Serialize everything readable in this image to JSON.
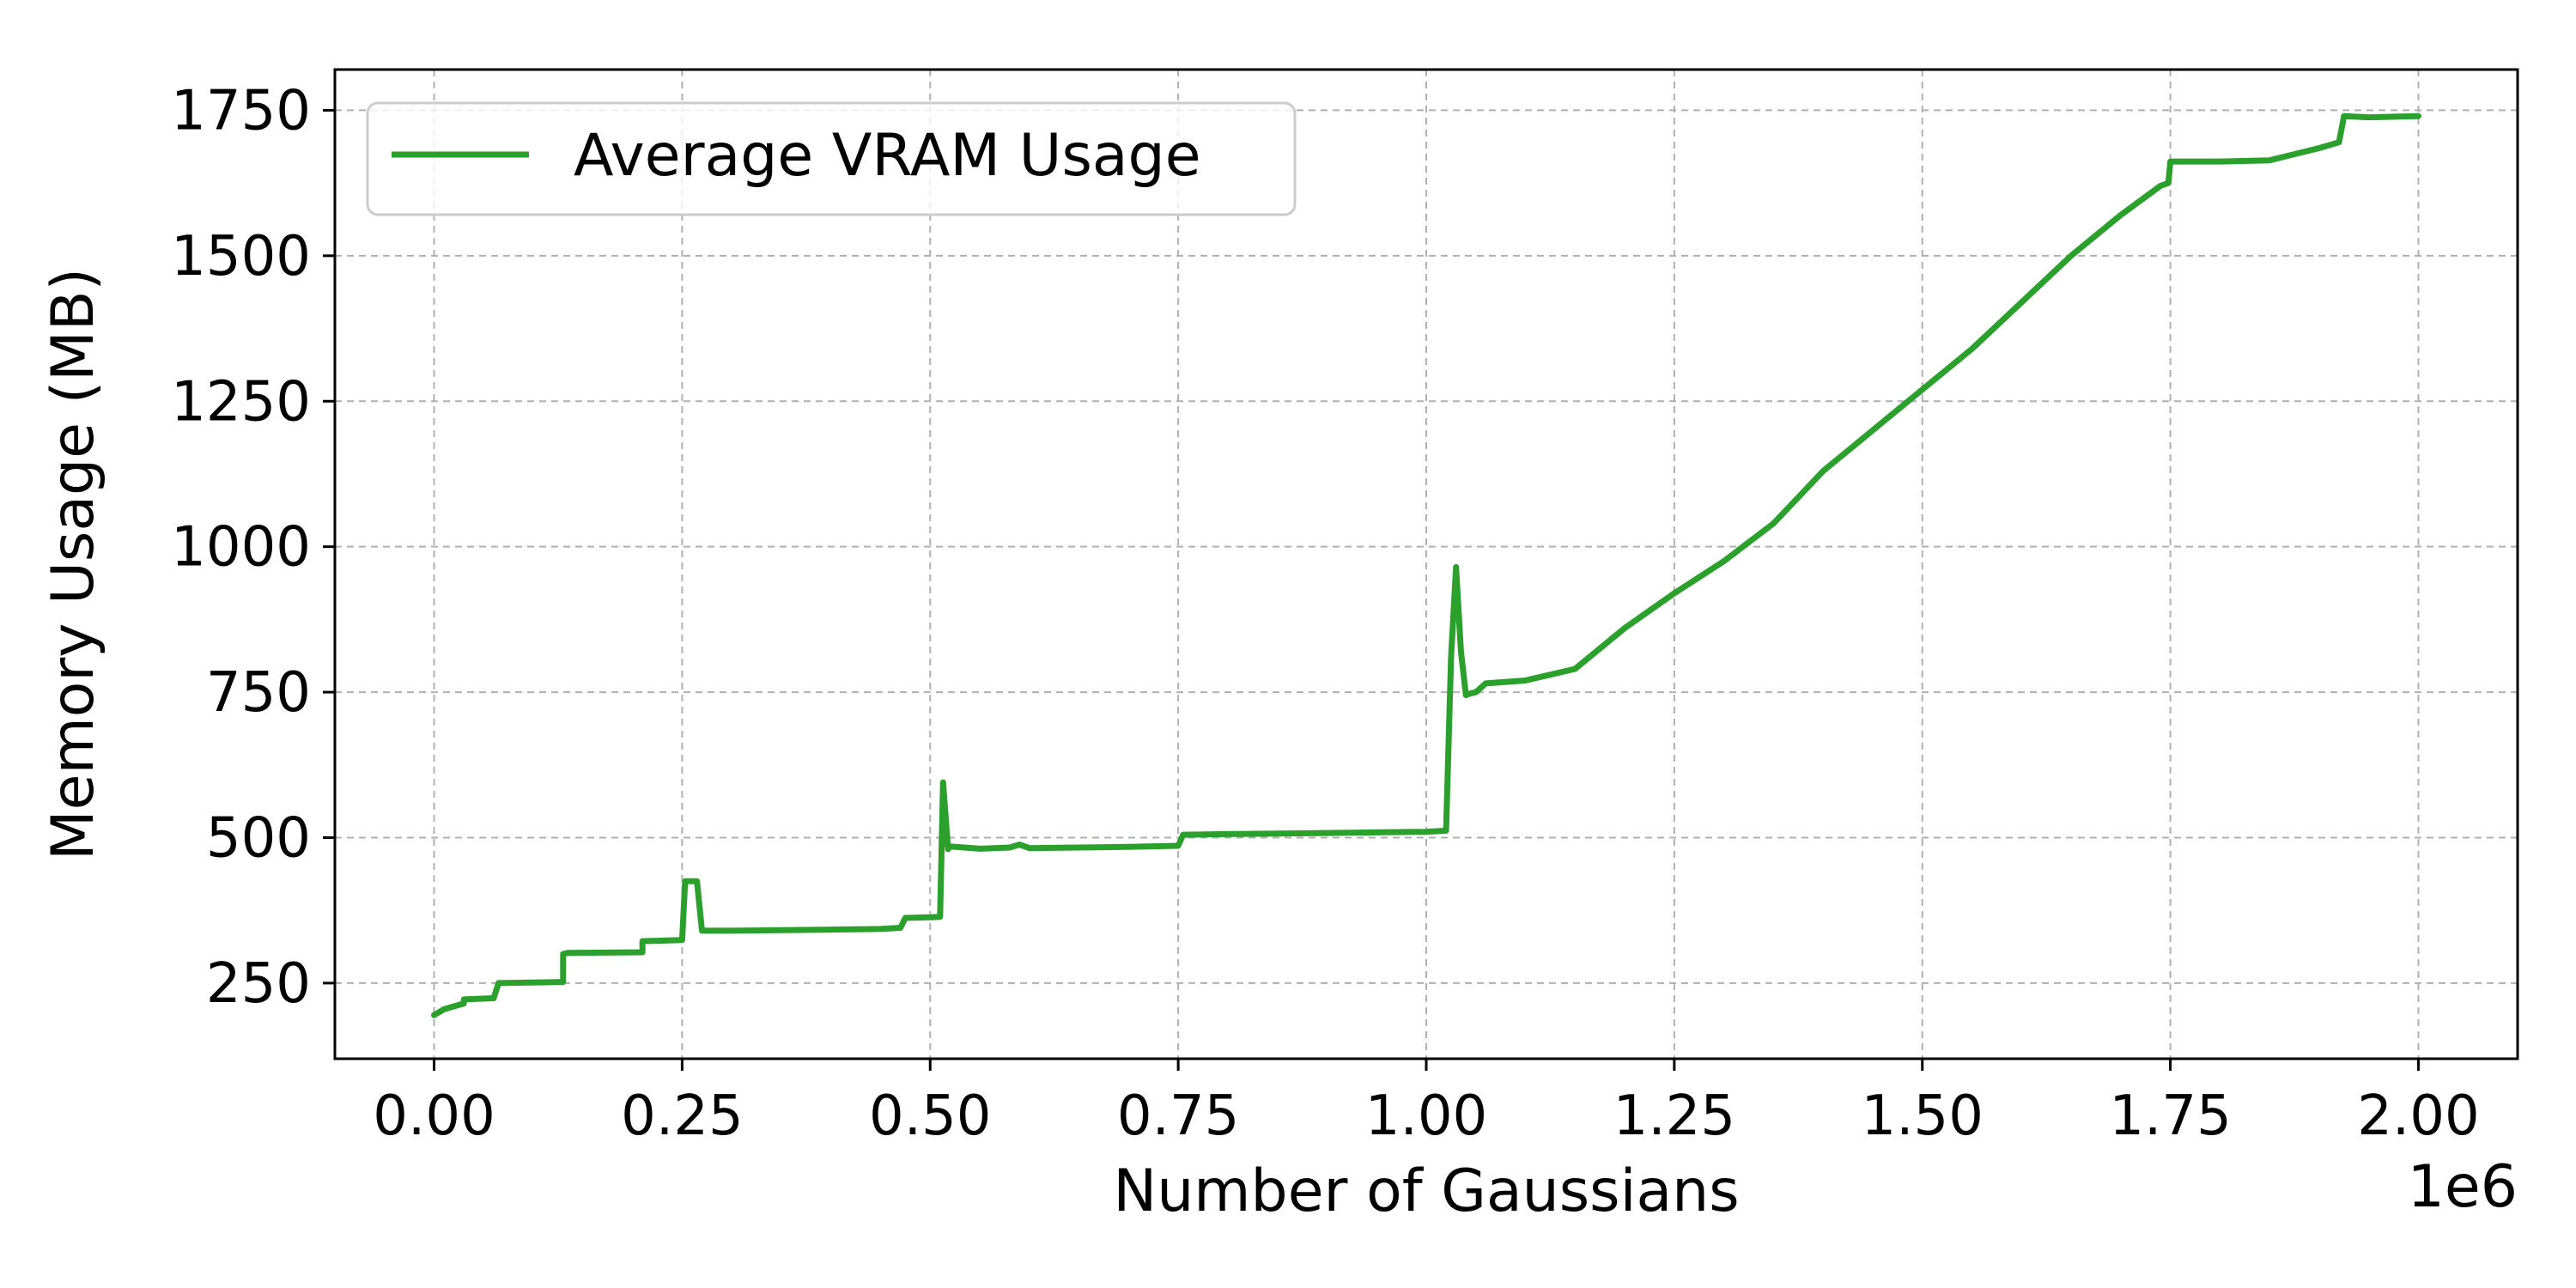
{
  "chart_data": {
    "type": "line",
    "xlabel": "Number of Gaussians",
    "ylabel": "Memory Usage (MB)",
    "x_offset_label": "1e6",
    "xlim": [
      -0.1,
      2.1
    ],
    "ylim": [
      120,
      1820
    ],
    "xticks": [
      0.0,
      0.25,
      0.5,
      0.75,
      1.0,
      1.25,
      1.5,
      1.75,
      2.0
    ],
    "xtick_labels": [
      "0.00",
      "0.25",
      "0.50",
      "0.75",
      "1.00",
      "1.25",
      "1.50",
      "1.75",
      "2.00"
    ],
    "yticks": [
      250,
      500,
      750,
      1000,
      1250,
      1500,
      1750
    ],
    "ytick_labels": [
      "250",
      "500",
      "750",
      "1000",
      "1250",
      "1500",
      "1750"
    ],
    "grid": true,
    "legend_position": "top-left",
    "series": [
      {
        "name": "Average VRAM Usage",
        "color": "#2ca02c",
        "x": [
          0.0,
          0.01,
          0.02,
          0.03,
          0.03,
          0.06,
          0.065,
          0.13,
          0.13,
          0.135,
          0.21,
          0.21,
          0.25,
          0.253,
          0.265,
          0.27,
          0.3,
          0.35,
          0.4,
          0.45,
          0.47,
          0.475,
          0.5,
          0.51,
          0.513,
          0.518,
          0.52,
          0.55,
          0.58,
          0.59,
          0.6,
          0.65,
          0.7,
          0.75,
          0.755,
          0.8,
          0.9,
          1.0,
          1.02,
          1.025,
          1.03,
          1.035,
          1.04,
          1.045,
          1.05,
          1.06,
          1.1,
          1.15,
          1.2,
          1.25,
          1.3,
          1.35,
          1.4,
          1.45,
          1.5,
          1.55,
          1.6,
          1.65,
          1.7,
          1.74,
          1.748,
          1.75,
          1.8,
          1.85,
          1.9,
          1.92,
          1.925,
          1.95,
          2.0
        ],
        "y": [
          195,
          205,
          210,
          215,
          222,
          224,
          250,
          252,
          300,
          302,
          303,
          322,
          324,
          425,
          425,
          340,
          340,
          341,
          342,
          343,
          345,
          362,
          363,
          364,
          595,
          480,
          485,
          481,
          483,
          488,
          482,
          483,
          484,
          486,
          505,
          506,
          508,
          510,
          512,
          810,
          965,
          820,
          745,
          748,
          750,
          765,
          770,
          790,
          860,
          920,
          975,
          1040,
          1130,
          1200,
          1270,
          1340,
          1420,
          1500,
          1570,
          1620,
          1625,
          1662,
          1662,
          1664,
          1685,
          1695,
          1740,
          1738,
          1740
        ]
      }
    ]
  }
}
